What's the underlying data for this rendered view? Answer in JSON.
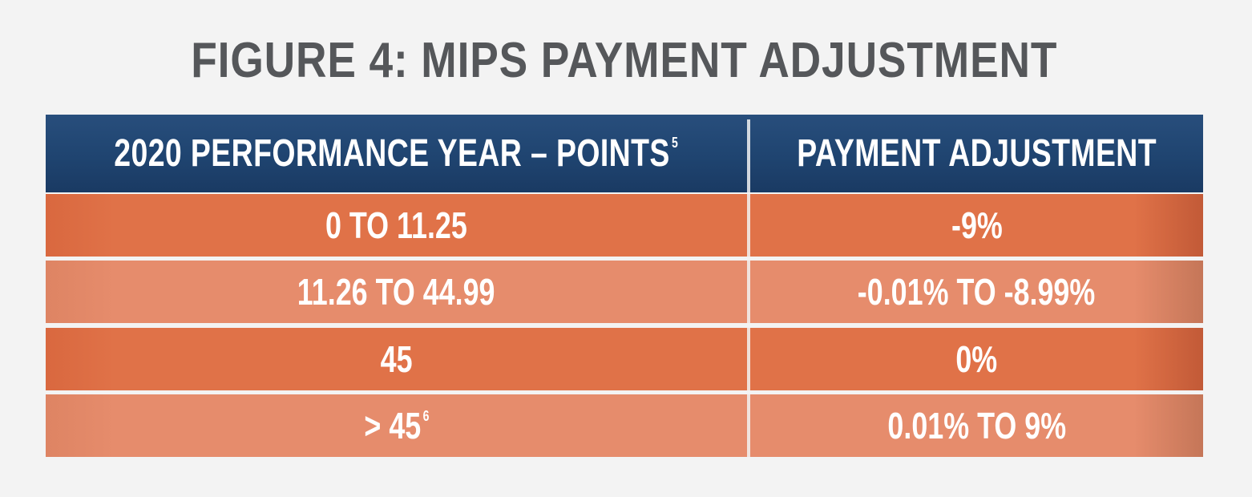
{
  "title": "FIGURE 4: MIPS PAYMENT ADJUSTMENT",
  "table": {
    "header": {
      "points_label": "2020 PERFORMANCE YEAR – POINTS",
      "points_footnote": "5",
      "adjustment_label": "PAYMENT ADJUSTMENT"
    },
    "rows": [
      {
        "points": "0 TO 11.25",
        "points_footnote": "",
        "adjustment": "-9%"
      },
      {
        "points": "11.26 TO 44.99",
        "points_footnote": "",
        "adjustment": "-0.01% TO -8.99%"
      },
      {
        "points": "45",
        "points_footnote": "",
        "adjustment": "0%"
      },
      {
        "points": "> 45",
        "points_footnote": "6",
        "adjustment": "0.01% TO 9%"
      }
    ]
  },
  "colors": {
    "header_blue": "#1f4470",
    "row_dark_orange": "#e07248",
    "row_light_orange": "#e68c6c",
    "title_gray": "#55575a"
  }
}
